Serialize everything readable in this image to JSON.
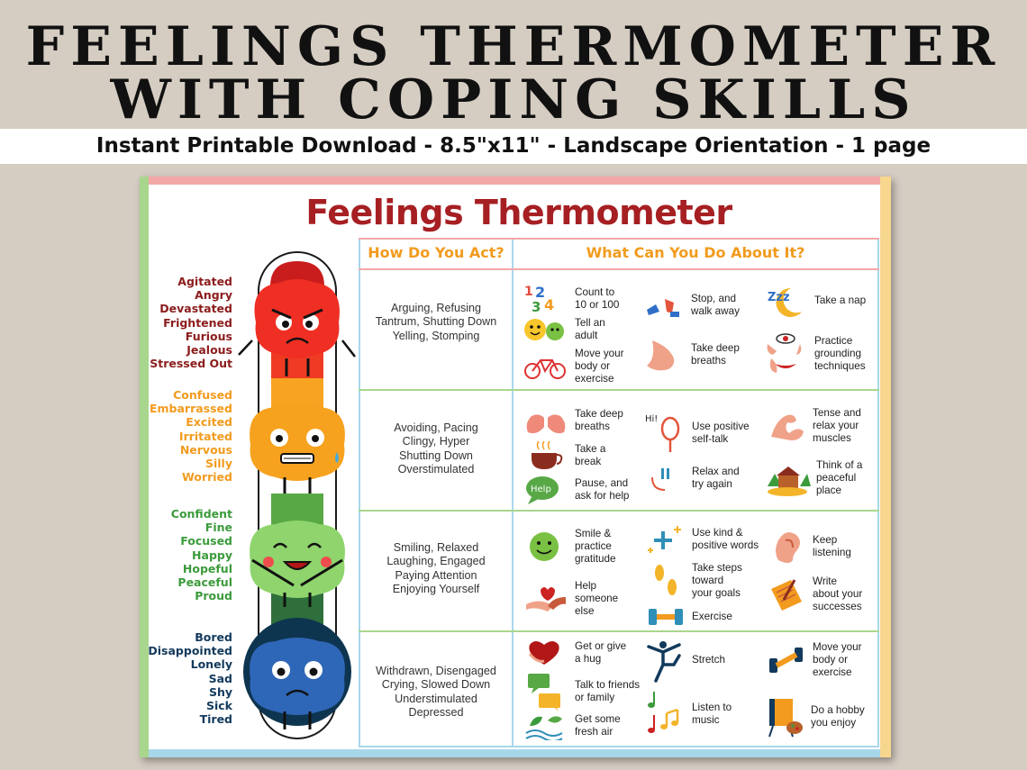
{
  "heading": {
    "line1": "FEELINGS THERMOMETER",
    "line2": "WITH COPING SKILLS"
  },
  "banner": "Instant Printable Download -  8.5\"x11\" - Landscape Orientation - 1 page",
  "sheet": {
    "title": "Feelings Thermometer",
    "headers": {
      "act": "How Do You Act?",
      "do": "What Can You Do About It?"
    },
    "levels": [
      {
        "color": "#8c1c1c",
        "feelings": [
          "Agitated",
          "Angry",
          "Devastated",
          "Frightened",
          "Furious",
          "Jealous",
          "Stressed Out"
        ],
        "acts": [
          "Arguing, Refusing",
          "Tantrum, Shutting Down",
          "Yelling, Stomping"
        ],
        "coping": [
          {
            "icon": "numbers-icon",
            "lines": [
              "Count to",
              "10 or 100"
            ]
          },
          {
            "icon": "emoji-faces-icon",
            "lines": [
              "Tell an",
              "adult"
            ]
          },
          {
            "icon": "bicycle-icon",
            "lines": [
              "Move your",
              "body or",
              "exercise"
            ]
          },
          {
            "icon": "footprints-icon",
            "lines": [
              "Stop, and",
              "walk away"
            ]
          },
          {
            "icon": "nose-icon",
            "lines": [
              "Take deep",
              "breaths"
            ]
          },
          {
            "icon": "moon-zzz-icon",
            "lines": [
              "Take a nap"
            ]
          },
          {
            "icon": "senses-icon",
            "lines": [
              "Practice",
              "grounding",
              "techniques"
            ]
          }
        ]
      },
      {
        "color": "#f29b1e",
        "feelings": [
          "Confused",
          "Embarrassed",
          "Excited",
          "Irritated",
          "Nervous",
          "Silly",
          "Worried"
        ],
        "acts": [
          "Avoiding, Pacing",
          "Clingy, Hyper",
          "Shutting Down",
          "Overstimulated"
        ],
        "coping": [
          {
            "icon": "lungs-icon",
            "lines": [
              "Take deep",
              "breaths"
            ]
          },
          {
            "icon": "coffee-cup-icon",
            "lines": [
              "Take a",
              "break"
            ]
          },
          {
            "icon": "help-bubble-icon",
            "lines": [
              "Pause, and",
              "ask for help"
            ]
          },
          {
            "icon": "mirror-hi-icon",
            "lines": [
              "Use positive",
              "self-talk"
            ]
          },
          {
            "icon": "pause-play-icon",
            "lines": [
              "Relax and",
              "try again"
            ]
          },
          {
            "icon": "muscle-arm-icon",
            "lines": [
              "Tense and",
              "relax your",
              "muscles"
            ]
          },
          {
            "icon": "cabin-icon",
            "lines": [
              "Think of a",
              "peaceful",
              "place"
            ]
          }
        ]
      },
      {
        "color": "#3c9b3c",
        "feelings": [
          "Confident",
          "Fine",
          "Focused",
          "Happy",
          "Hopeful",
          "Peaceful",
          "Proud"
        ],
        "acts": [
          "Smiling, Relaxed",
          "Laughing, Engaged",
          "Paying Attention",
          "Enjoying Yourself"
        ],
        "coping": [
          {
            "icon": "smiley-icon",
            "lines": [
              "Smile &",
              "practice",
              "gratitude"
            ]
          },
          {
            "icon": "helping-hands-icon",
            "lines": [
              "Help",
              "someone",
              "else"
            ]
          },
          {
            "icon": "sparkle-plus-icon",
            "lines": [
              "Use kind &",
              "positive words"
            ]
          },
          {
            "icon": "footsteps-icon",
            "lines": [
              "Take steps",
              "toward",
              "your goals"
            ]
          },
          {
            "icon": "dumbbell-icon",
            "lines": [
              "Exercise"
            ]
          },
          {
            "icon": "ear-icon",
            "lines": [
              "Keep",
              "listening"
            ]
          },
          {
            "icon": "notepad-icon",
            "lines": [
              "Write",
              "about your",
              "successes"
            ]
          }
        ]
      },
      {
        "color": "#123a5c",
        "feelings": [
          "Bored",
          "Disappointed",
          "Lonely",
          "Sad",
          "Shy",
          "Sick",
          "Tired"
        ],
        "acts": [
          "Withdrawn, Disengaged",
          "Crying, Slowed Down",
          "Understimulated",
          "Depressed"
        ],
        "coping": [
          {
            "icon": "heart-hug-icon",
            "lines": [
              "Get or give",
              "a hug"
            ]
          },
          {
            "icon": "chat-bubbles-icon",
            "lines": [
              "Talk to friends",
              "or family"
            ]
          },
          {
            "icon": "leaves-icon",
            "lines": [
              "Get some",
              "fresh air"
            ]
          },
          {
            "icon": "stretch-figure-icon",
            "lines": [
              "Stretch"
            ]
          },
          {
            "icon": "music-notes-icon",
            "lines": [
              "Listen to",
              "music"
            ]
          },
          {
            "icon": "dumbbell-icon",
            "lines": [
              "Move your",
              "body or",
              "exercise"
            ]
          },
          {
            "icon": "easel-icon",
            "lines": [
              "Do a hobby",
              "you enjoy"
            ]
          }
        ]
      }
    ]
  }
}
